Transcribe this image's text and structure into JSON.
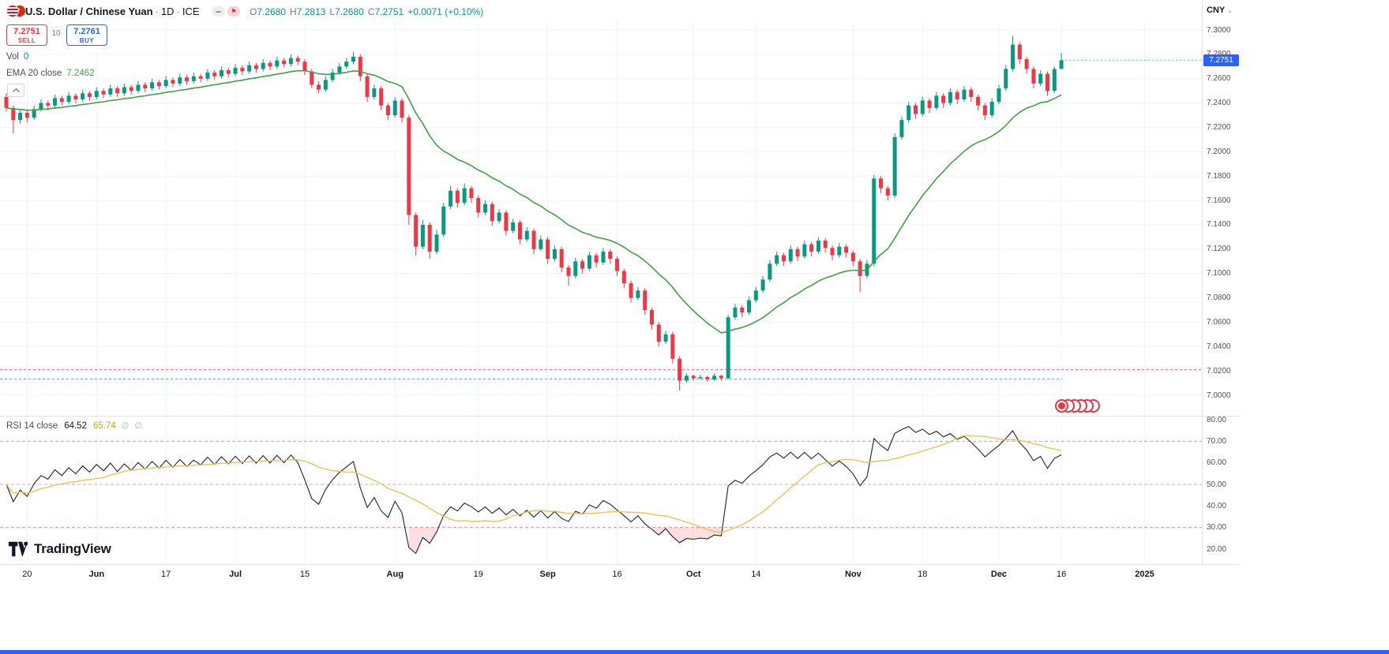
{
  "header": {
    "symbol_title": "U.S. Dollar / Chinese Yuan",
    "sep": "·",
    "timeframe": "1D",
    "exchange": "ICE",
    "ohlc": {
      "o_label": "O",
      "o": "7.2680",
      "h_label": "H",
      "h": "7.2813",
      "l_label": "L",
      "l": "7.2680",
      "c_label": "C",
      "c": "7.2751",
      "change": "+0.0071 (+0.10%)"
    },
    "currency": "CNY",
    "currency_caret": "⌄"
  },
  "order_panel": {
    "sell_price": "7.2751",
    "sell_label": "SELL",
    "spread": "10",
    "buy_price": "7.2761",
    "buy_label": "BUY"
  },
  "indicators": {
    "vol_label": "Vol",
    "vol_value": "0",
    "ema_label": "EMA 20 close",
    "ema_value": "7.2462",
    "rsi_label": "RSI 14 close",
    "rsi_value": "64.52",
    "rsi_ma_value": "65.74",
    "rsi_icon": "∅",
    "collapse_glyph": "▲"
  },
  "logo_text": "TradingView",
  "axes": {
    "price_ticks": [
      "7.3000",
      "7.2800",
      "7.2600",
      "7.2400",
      "7.2200",
      "7.2000",
      "7.1800",
      "7.1600",
      "7.1400",
      "7.1200",
      "7.1000",
      "7.0800",
      "7.0600",
      "7.0400",
      "7.0200",
      "7.0000"
    ],
    "rsi_ticks": [
      "80.00",
      "70.00",
      "60.00",
      "50.00",
      "40.00",
      "30.00",
      "20.00"
    ],
    "time_ticks": [
      {
        "i": 3,
        "label": "20",
        "major": false
      },
      {
        "i": 13,
        "label": "Jun",
        "major": true
      },
      {
        "i": 23,
        "label": "17",
        "major": false
      },
      {
        "i": 33,
        "label": "Jul",
        "major": true
      },
      {
        "i": 43,
        "label": "15",
        "major": false
      },
      {
        "i": 56,
        "label": "Aug",
        "major": true
      },
      {
        "i": 68,
        "label": "19",
        "major": false
      },
      {
        "i": 78,
        "label": "Sep",
        "major": true
      },
      {
        "i": 88,
        "label": "16",
        "major": false
      },
      {
        "i": 99,
        "label": "Oct",
        "major": true
      },
      {
        "i": 108,
        "label": "14",
        "major": false
      },
      {
        "i": 122,
        "label": "Nov",
        "major": true
      },
      {
        "i": 132,
        "label": "18",
        "major": false
      },
      {
        "i": 143,
        "label": "Dec",
        "major": true
      },
      {
        "i": 152,
        "label": "16",
        "major": false
      },
      {
        "i": 164,
        "label": "2025",
        "major": true
      }
    ],
    "last_price_label": "7.2751"
  },
  "event_marker_count": 6,
  "chart_data": {
    "type": "candlestick",
    "symbol": "USDCNY",
    "timeframe": "1D",
    "exchange": "ICE",
    "ylabel": "CNY",
    "price_range": [
      7.0,
      7.3
    ],
    "rsi_range": [
      20,
      80
    ],
    "last_price": 7.2751,
    "indicators": {
      "ema_period": 20,
      "rsi_period": 14,
      "rsi_ma_period": 14
    },
    "levels": {
      "price_lines": [
        {
          "value": 7.021,
          "color": "#f23645"
        },
        {
          "value": 7.0134,
          "color": "#089981"
        }
      ],
      "rsi_lines": [
        {
          "value": 70,
          "color": "#089981"
        },
        {
          "value": 50,
          "color": "#787b86"
        },
        {
          "value": 30,
          "color": "#f23645"
        }
      ]
    },
    "colors": {
      "up": "#089981",
      "down": "#f23645",
      "ema": "#43a047",
      "rsi": "#1e222d",
      "rsi_ma": "#e6c35c",
      "oversold_fill": "#f23645",
      "grid": "#f0f3fa",
      "accent_blue": "#2962ff"
    },
    "candles": [
      [
        7.245,
        7.248,
        7.233,
        7.236
      ],
      [
        7.236,
        7.238,
        7.215,
        7.226
      ],
      [
        7.226,
        7.235,
        7.223,
        7.232
      ],
      [
        7.232,
        7.234,
        7.224,
        7.228
      ],
      [
        7.228,
        7.238,
        7.226,
        7.235
      ],
      [
        7.235,
        7.243,
        7.233,
        7.24
      ],
      [
        7.24,
        7.242,
        7.234,
        7.238
      ],
      [
        7.238,
        7.247,
        7.236,
        7.244
      ],
      [
        7.244,
        7.246,
        7.238,
        7.241
      ],
      [
        7.241,
        7.249,
        7.239,
        7.246
      ],
      [
        7.246,
        7.248,
        7.24,
        7.243
      ],
      [
        7.243,
        7.251,
        7.241,
        7.248
      ],
      [
        7.248,
        7.25,
        7.242,
        7.245
      ],
      [
        7.245,
        7.253,
        7.243,
        7.25
      ],
      [
        7.25,
        7.252,
        7.244,
        7.247
      ],
      [
        7.247,
        7.255,
        7.245,
        7.252
      ],
      [
        7.252,
        7.254,
        7.245,
        7.248
      ],
      [
        7.248,
        7.256,
        7.246,
        7.253
      ],
      [
        7.253,
        7.255,
        7.247,
        7.25
      ],
      [
        7.25,
        7.258,
        7.248,
        7.255
      ],
      [
        7.255,
        7.257,
        7.249,
        7.252
      ],
      [
        7.252,
        7.26,
        7.25,
        7.257
      ],
      [
        7.257,
        7.259,
        7.251,
        7.254
      ],
      [
        7.254,
        7.262,
        7.252,
        7.259
      ],
      [
        7.259,
        7.261,
        7.253,
        7.256
      ],
      [
        7.256,
        7.264,
        7.254,
        7.261
      ],
      [
        7.261,
        7.263,
        7.255,
        7.258
      ],
      [
        7.258,
        7.265,
        7.256,
        7.262
      ],
      [
        7.262,
        7.264,
        7.257,
        7.26
      ],
      [
        7.26,
        7.268,
        7.258,
        7.265
      ],
      [
        7.265,
        7.267,
        7.259,
        7.262
      ],
      [
        7.262,
        7.27,
        7.26,
        7.267
      ],
      [
        7.267,
        7.269,
        7.261,
        7.264
      ],
      [
        7.264,
        7.272,
        7.262,
        7.269
      ],
      [
        7.269,
        7.271,
        7.263,
        7.266
      ],
      [
        7.266,
        7.274,
        7.264,
        7.271
      ],
      [
        7.271,
        7.273,
        7.265,
        7.268
      ],
      [
        7.268,
        7.276,
        7.266,
        7.273
      ],
      [
        7.273,
        7.275,
        7.267,
        7.27
      ],
      [
        7.27,
        7.278,
        7.268,
        7.275
      ],
      [
        7.275,
        7.277,
        7.269,
        7.272
      ],
      [
        7.272,
        7.28,
        7.27,
        7.277
      ],
      [
        7.277,
        7.279,
        7.271,
        7.274
      ],
      [
        7.274,
        7.276,
        7.263,
        7.266
      ],
      [
        7.266,
        7.268,
        7.252,
        7.255
      ],
      [
        7.255,
        7.258,
        7.248,
        7.251
      ],
      [
        7.251,
        7.262,
        7.249,
        7.259
      ],
      [
        7.259,
        7.268,
        7.257,
        7.265
      ],
      [
        7.265,
        7.273,
        7.263,
        7.27
      ],
      [
        7.27,
        7.277,
        7.268,
        7.274
      ],
      [
        7.274,
        7.282,
        7.272,
        7.278
      ],
      [
        7.278,
        7.28,
        7.258,
        7.262
      ],
      [
        7.262,
        7.264,
        7.241,
        7.245
      ],
      [
        7.245,
        7.255,
        7.243,
        7.252
      ],
      [
        7.252,
        7.254,
        7.234,
        7.238
      ],
      [
        7.238,
        7.24,
        7.226,
        7.23
      ],
      [
        7.23,
        7.245,
        7.228,
        7.242
      ],
      [
        7.242,
        7.244,
        7.224,
        7.228
      ],
      [
        7.228,
        7.23,
        7.14,
        7.148
      ],
      [
        7.148,
        7.15,
        7.115,
        7.122
      ],
      [
        7.122,
        7.144,
        7.12,
        7.14
      ],
      [
        7.14,
        7.142,
        7.112,
        7.118
      ],
      [
        7.118,
        7.136,
        7.116,
        7.132
      ],
      [
        7.132,
        7.158,
        7.13,
        7.155
      ],
      [
        7.155,
        7.172,
        7.153,
        7.168
      ],
      [
        7.168,
        7.17,
        7.154,
        7.158
      ],
      [
        7.158,
        7.174,
        7.156,
        7.17
      ],
      [
        7.17,
        7.172,
        7.158,
        7.162
      ],
      [
        7.162,
        7.164,
        7.146,
        7.15
      ],
      [
        7.15,
        7.16,
        7.148,
        7.157
      ],
      [
        7.157,
        7.159,
        7.139,
        7.143
      ],
      [
        7.143,
        7.153,
        7.141,
        7.15
      ],
      [
        7.15,
        7.152,
        7.131,
        7.135
      ],
      [
        7.135,
        7.145,
        7.133,
        7.142
      ],
      [
        7.142,
        7.144,
        7.124,
        7.128
      ],
      [
        7.128,
        7.138,
        7.126,
        7.135
      ],
      [
        7.135,
        7.137,
        7.116,
        7.12
      ],
      [
        7.12,
        7.131,
        7.118,
        7.128
      ],
      [
        7.128,
        7.13,
        7.108,
        7.112
      ],
      [
        7.112,
        7.123,
        7.11,
        7.12
      ],
      [
        7.12,
        7.122,
        7.101,
        7.105
      ],
      [
        7.105,
        7.107,
        7.09,
        7.098
      ],
      [
        7.098,
        7.113,
        7.096,
        7.11
      ],
      [
        7.11,
        7.112,
        7.1,
        7.104
      ],
      [
        7.104,
        7.118,
        7.102,
        7.115
      ],
      [
        7.115,
        7.117,
        7.105,
        7.109
      ],
      [
        7.109,
        7.121,
        7.107,
        7.118
      ],
      [
        7.118,
        7.12,
        7.108,
        7.112
      ],
      [
        7.112,
        7.114,
        7.098,
        7.102
      ],
      [
        7.102,
        7.104,
        7.088,
        7.092
      ],
      [
        7.092,
        7.094,
        7.076,
        7.08
      ],
      [
        7.08,
        7.089,
        7.078,
        7.086
      ],
      [
        7.086,
        7.088,
        7.066,
        7.07
      ],
      [
        7.07,
        7.072,
        7.054,
        7.058
      ],
      [
        7.058,
        7.06,
        7.04,
        7.044
      ],
      [
        7.044,
        7.053,
        7.042,
        7.05
      ],
      [
        7.05,
        7.052,
        7.026,
        7.03
      ],
      [
        7.03,
        7.032,
        7.004,
        7.012
      ],
      [
        7.012,
        7.018,
        7.01,
        7.016
      ],
      [
        7.016,
        7.017,
        7.012,
        7.014
      ],
      [
        7.014,
        7.017,
        7.013,
        7.015
      ],
      [
        7.015,
        7.016,
        7.011,
        7.013
      ],
      [
        7.013,
        7.018,
        7.012,
        7.016
      ],
      [
        7.016,
        7.017,
        7.012,
        7.014
      ],
      [
        7.014,
        7.066,
        7.013,
        7.064
      ],
      [
        7.064,
        7.075,
        7.062,
        7.072
      ],
      [
        7.072,
        7.074,
        7.064,
        7.068
      ],
      [
        7.068,
        7.081,
        7.066,
        7.078
      ],
      [
        7.078,
        7.089,
        7.076,
        7.086
      ],
      [
        7.086,
        7.098,
        7.084,
        7.095
      ],
      [
        7.095,
        7.111,
        7.093,
        7.108
      ],
      [
        7.108,
        7.118,
        7.106,
        7.115
      ],
      [
        7.115,
        7.117,
        7.106,
        7.11
      ],
      [
        7.11,
        7.123,
        7.108,
        7.12
      ],
      [
        7.12,
        7.122,
        7.11,
        7.114
      ],
      [
        7.114,
        7.127,
        7.112,
        7.124
      ],
      [
        7.124,
        7.126,
        7.114,
        7.118
      ],
      [
        7.118,
        7.13,
        7.116,
        7.127
      ],
      [
        7.127,
        7.129,
        7.117,
        7.121
      ],
      [
        7.121,
        7.123,
        7.111,
        7.115
      ],
      [
        7.115,
        7.125,
        7.113,
        7.122
      ],
      [
        7.122,
        7.124,
        7.113,
        7.117
      ],
      [
        7.117,
        7.119,
        7.106,
        7.11
      ],
      [
        7.11,
        7.112,
        7.085,
        7.098
      ],
      [
        7.098,
        7.111,
        7.096,
        7.108
      ],
      [
        7.108,
        7.181,
        7.106,
        7.178
      ],
      [
        7.178,
        7.18,
        7.166,
        7.17
      ],
      [
        7.17,
        7.172,
        7.16,
        7.164
      ],
      [
        7.164,
        7.215,
        7.162,
        7.212
      ],
      [
        7.212,
        7.229,
        7.21,
        7.226
      ],
      [
        7.226,
        7.241,
        7.224,
        7.238
      ],
      [
        7.238,
        7.24,
        7.227,
        7.231
      ],
      [
        7.231,
        7.245,
        7.229,
        7.242
      ],
      [
        7.242,
        7.244,
        7.232,
        7.236
      ],
      [
        7.236,
        7.249,
        7.234,
        7.246
      ],
      [
        7.246,
        7.248,
        7.236,
        7.24
      ],
      [
        7.24,
        7.252,
        7.238,
        7.249
      ],
      [
        7.249,
        7.251,
        7.239,
        7.243
      ],
      [
        7.243,
        7.254,
        7.241,
        7.251
      ],
      [
        7.251,
        7.253,
        7.241,
        7.245
      ],
      [
        7.245,
        7.247,
        7.234,
        7.238
      ],
      [
        7.238,
        7.24,
        7.226,
        7.23
      ],
      [
        7.23,
        7.244,
        7.228,
        7.241
      ],
      [
        7.241,
        7.255,
        7.239,
        7.252
      ],
      [
        7.252,
        7.271,
        7.25,
        7.268
      ],
      [
        7.268,
        7.295,
        7.266,
        7.288
      ],
      [
        7.288,
        7.29,
        7.272,
        7.276
      ],
      [
        7.276,
        7.278,
        7.264,
        7.268
      ],
      [
        7.268,
        7.27,
        7.252,
        7.256
      ],
      [
        7.256,
        7.267,
        7.254,
        7.264
      ],
      [
        7.264,
        7.266,
        7.246,
        7.25
      ],
      [
        7.25,
        7.27,
        7.248,
        7.268
      ],
      [
        7.268,
        7.2813,
        7.268,
        7.2751
      ]
    ]
  }
}
